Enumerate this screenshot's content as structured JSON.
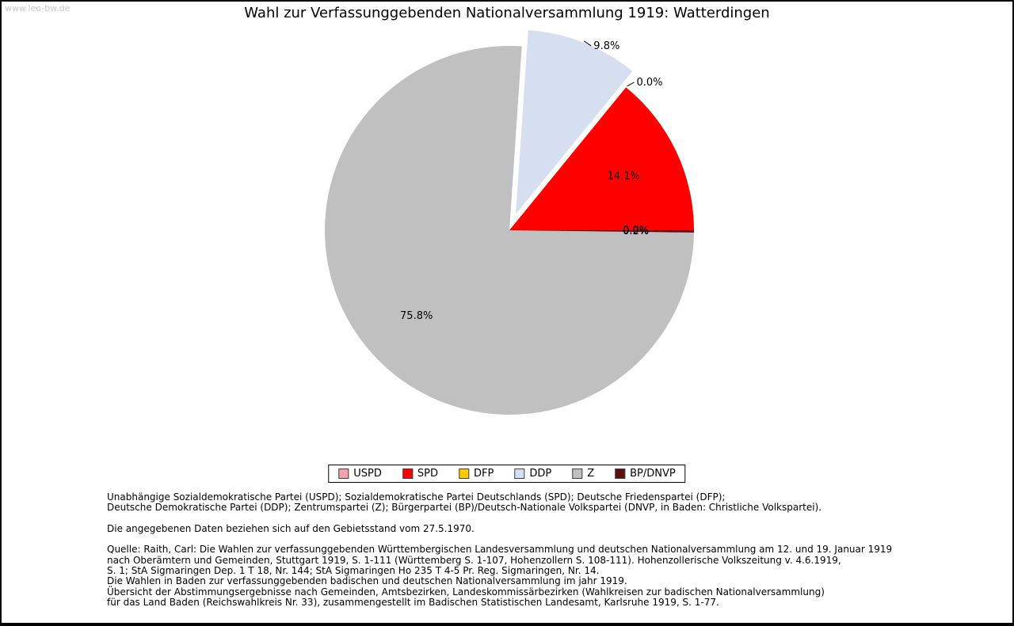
{
  "watermark": "www.leo-bw.de",
  "title": "Wahl zur Verfassunggebenden Nationalversammlung 1919: Watterdingen",
  "chart_data": {
    "type": "pie",
    "title": "Wahl zur Verfassunggebenden Nationalversammlung 1919: Watterdingen",
    "unit": "percent",
    "start_angle_deg": 0,
    "direction": "counterclockwise",
    "legend_position": "bottom",
    "slices": [
      {
        "label": "USPD",
        "value": 0.0,
        "pct_label": "0.0%",
        "color": "#f2a3ad",
        "exploded": false,
        "label_placement": "inside"
      },
      {
        "label": "SPD",
        "value": 14.1,
        "pct_label": "14.1%",
        "color": "#ff0000",
        "exploded": false,
        "label_placement": "inside"
      },
      {
        "label": "DFP",
        "value": 0.0,
        "pct_label": "0.0%",
        "color": "#ffc800",
        "exploded": false,
        "label_placement": "outside"
      },
      {
        "label": "DDP",
        "value": 9.8,
        "pct_label": "9.8%",
        "color": "#d5dff0",
        "exploded": true,
        "label_placement": "outside"
      },
      {
        "label": "Z",
        "value": 75.8,
        "pct_label": "75.8%",
        "color": "#c0c0c0",
        "exploded": false,
        "label_placement": "inside"
      },
      {
        "label": "BP/DNVP",
        "value": 0.2,
        "pct_label": "0.2%",
        "color": "#5c1014",
        "exploded": false,
        "label_placement": "inside"
      }
    ]
  },
  "notes": {
    "parties": "Unabhängige Sozialdemokratische Partei (USPD); Sozialdemokratische Partei Deutschlands (SPD); Deutsche Friedenspartei (DFP);\nDeutsche Demokratische Partei (DDP); Zentrumspartei (Z); Bürgerpartei (BP)/Deutsch-Nationale Volkspartei (DNVP, in Baden: Christliche Volkspartei).",
    "territory": "Die angegebenen Daten beziehen sich auf den Gebietsstand vom 27.5.1970.",
    "source": "Quelle: Raith, Carl: Die Wahlen zur verfassunggebenden Württembergischen Landesversammlung und deutschen Nationalversammlung am 12. und 19. Januar 1919\nnach Oberämtern und Gemeinden, Stuttgart 1919, S. 1-111 (Württemberg S. 1-107, Hohenzollern S. 108-111). Hohenzollerische Volkszeitung v. 4.6.1919,\nS. 1; StA Sigmaringen Dep. 1 T 18, Nr. 144; StA Sigmaringen Ho 235 T 4-5 Pr. Reg. Sigmaringen, Nr. 14.\nDie Wahlen in Baden zur verfassunggebenden badischen und deutschen Nationalversammlung im jahr 1919.\nÜbersicht der Abstimmungsergebnisse nach Gemeinden, Amtsbezirken, Landeskommissärbezirken (Wahlkreisen zur badischen Nationalversammlung)\nfür das Land Baden (Reichswahlkreis Nr. 33), zusammengestellt im Badischen Statistischen Landesamt, Karlsruhe 1919, S. 1-77."
  }
}
